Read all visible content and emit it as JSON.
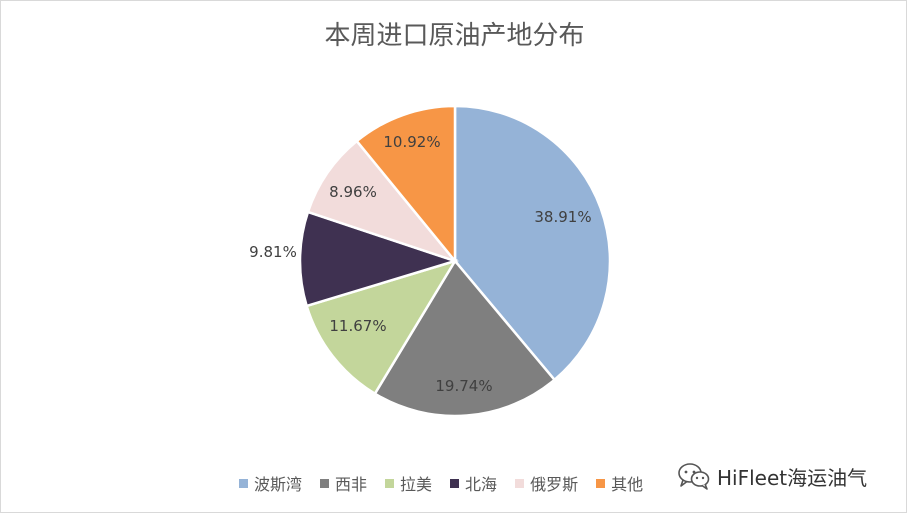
{
  "chart_data": {
    "type": "pie",
    "title": "本周进口原油产地分布",
    "categories": [
      "波斯湾",
      "西非",
      "拉美",
      "北海",
      "俄罗斯",
      "其他"
    ],
    "values": [
      38.91,
      19.74,
      11.67,
      9.81,
      8.96,
      10.92
    ],
    "labels": [
      "38.91%",
      "19.74%",
      "11.67%",
      "9.81%",
      "8.96%",
      "10.92%"
    ],
    "colors": [
      "#95b3d7",
      "#7f7f7f",
      "#c3d69b",
      "#3f3151",
      "#f2dcdb",
      "#f79646"
    ],
    "legend_position": "bottom"
  },
  "watermark": {
    "text": "HiFleet海运油气",
    "icon": "wechat-icon"
  }
}
